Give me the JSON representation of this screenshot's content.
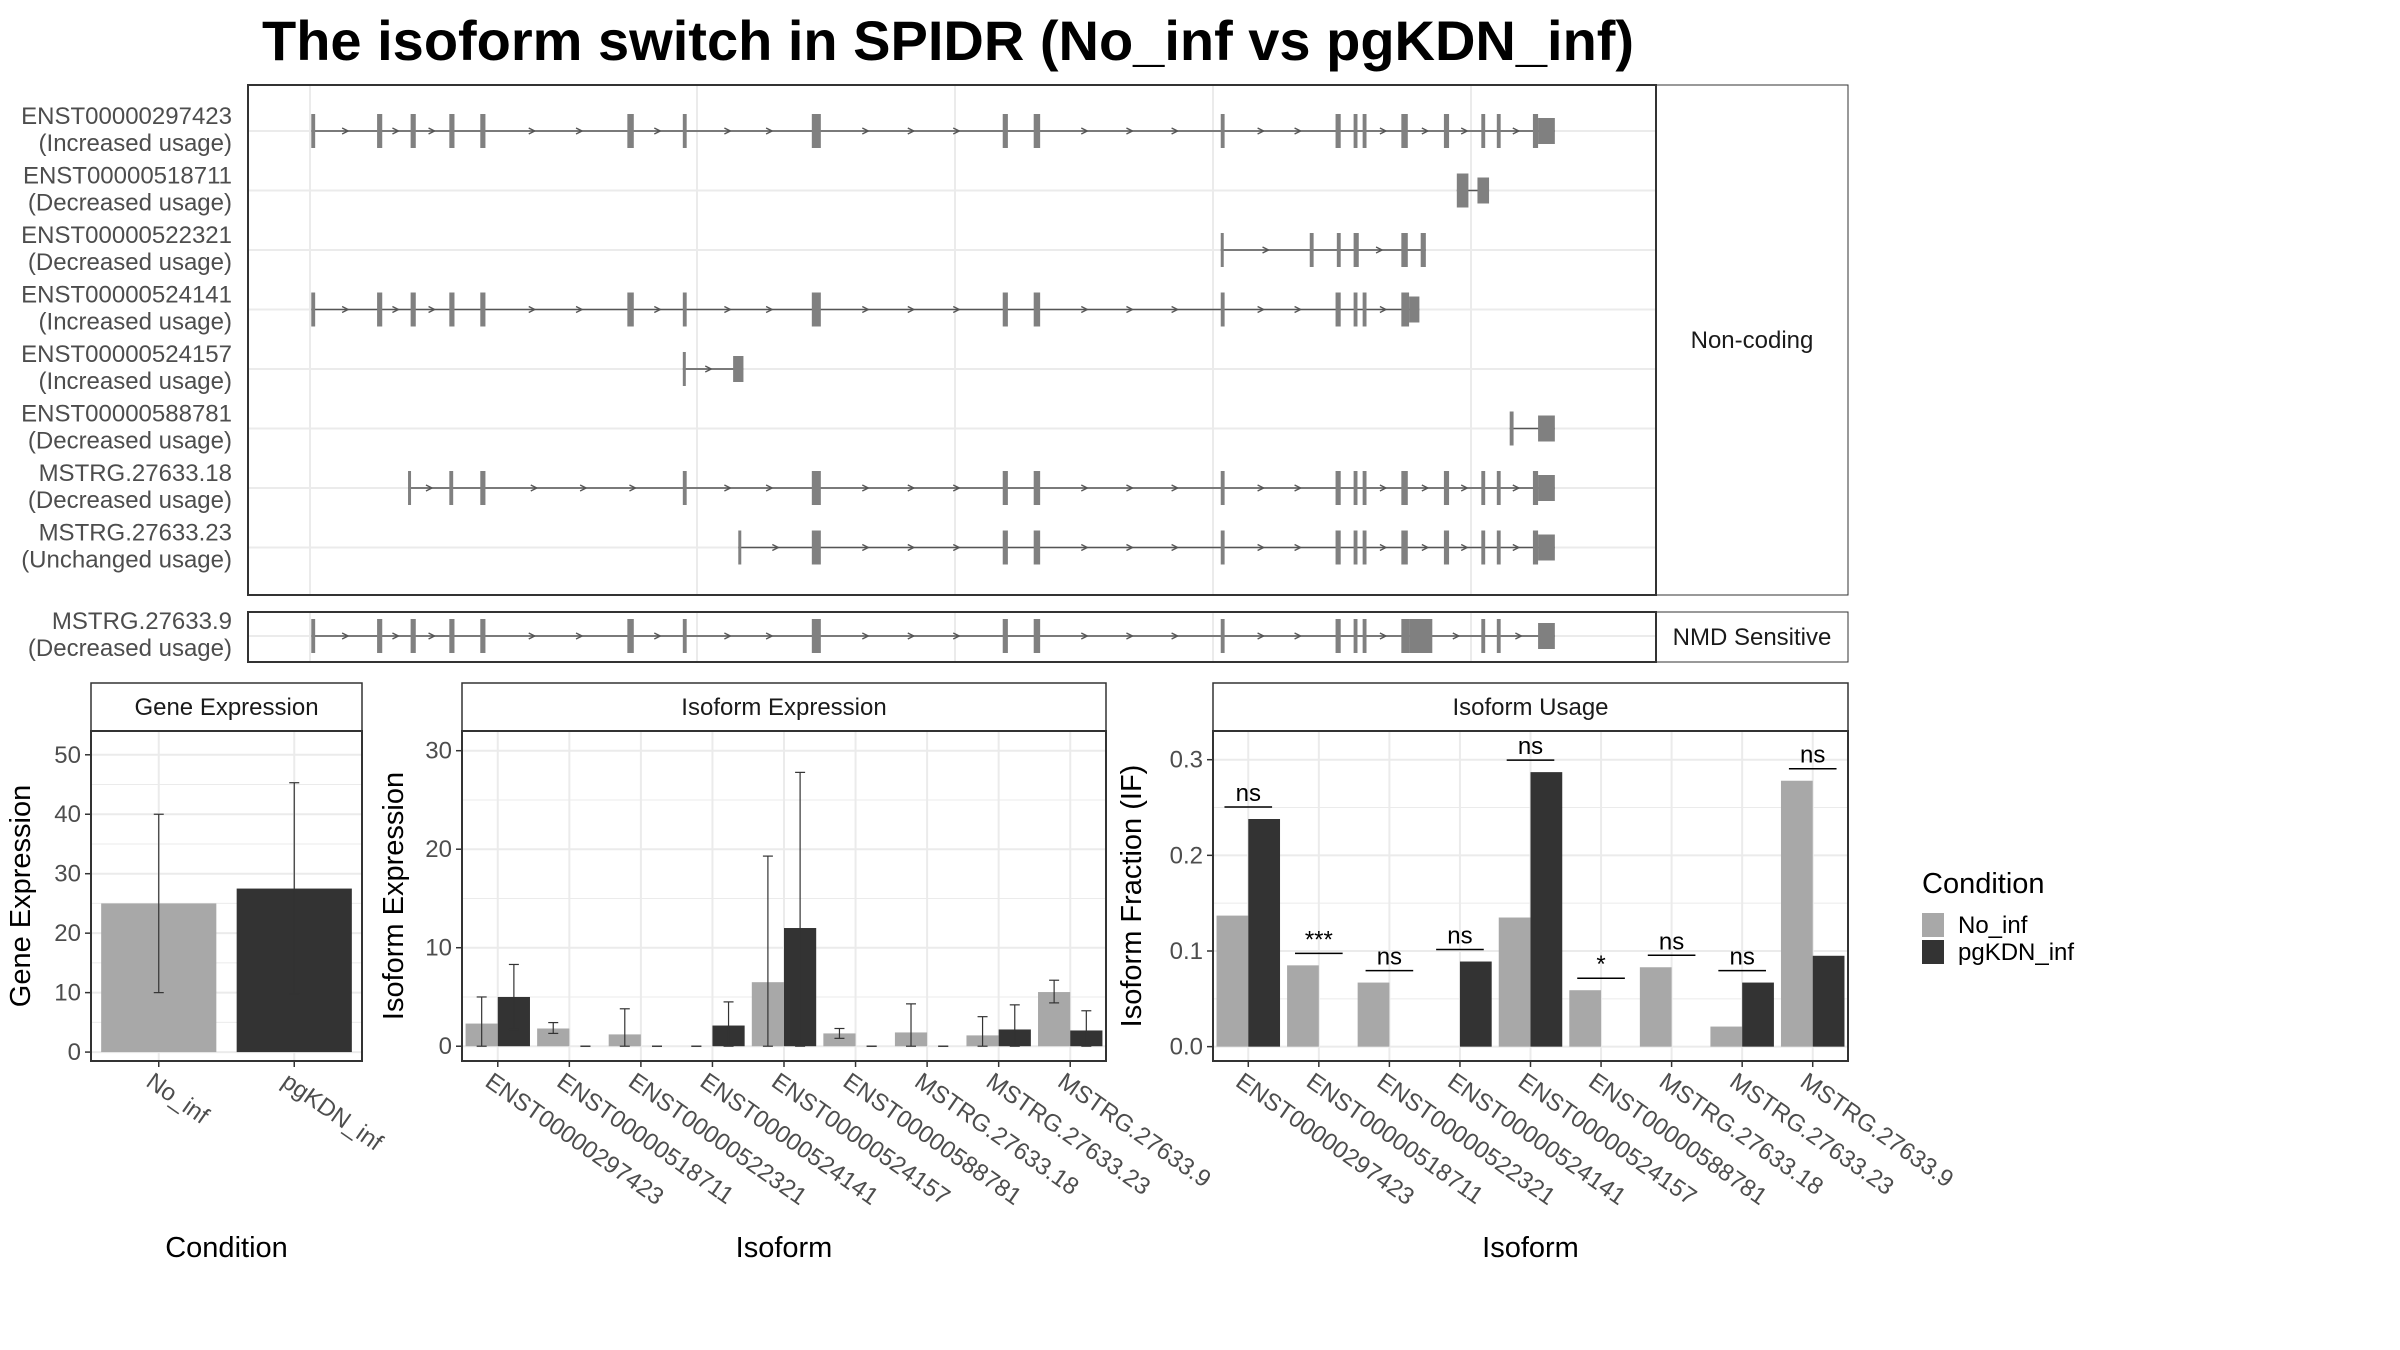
{
  "title": "The isoform switch in SPIDR (No_inf vs pgKDN_inf)",
  "colors": {
    "no_inf": "#a8a8a8",
    "pgkdn_inf": "#333333",
    "exon": "#808080",
    "strip": "#ffffff",
    "grid": "#ebebeb"
  },
  "legend": {
    "title": "Condition",
    "entries": [
      "No_inf",
      "pgKDN_inf"
    ]
  },
  "transcripts": {
    "facets": [
      "Non-coding",
      "NMD Sensitive"
    ],
    "x_range": [
      0,
      100
    ],
    "tracks": [
      {
        "id": "ENST00000297423",
        "usage": "(Increased usage)",
        "facet": 0,
        "exons": [
          [
            0.1,
            0.4
          ],
          [
            5.2,
            5.6
          ],
          [
            7.8,
            8.2
          ],
          [
            10.8,
            11.2
          ],
          [
            13.2,
            13.6
          ],
          [
            24.6,
            25.1
          ],
          [
            28.9,
            29.2
          ],
          [
            38.9,
            39.6
          ],
          [
            53.7,
            54.1
          ],
          [
            56.1,
            56.6
          ],
          [
            70.6,
            70.9
          ],
          [
            79.5,
            79.9
          ],
          [
            80.9,
            81.2
          ],
          [
            81.6,
            81.9
          ],
          [
            84.6,
            85.1
          ],
          [
            87.9,
            88.3
          ],
          [
            90.8,
            91.1
          ],
          [
            92.0,
            92.3
          ],
          [
            94.8,
            95.2
          ],
          [
            95.2,
            96.5
          ]
        ]
      },
      {
        "id": "ENST00000518711",
        "usage": "(Decreased usage)",
        "facet": 0,
        "exons": [
          [
            88.9,
            89.8
          ],
          [
            90.5,
            91.4
          ]
        ]
      },
      {
        "id": "ENST00000522321",
        "usage": "(Decreased usage)",
        "facet": 0,
        "exons": [
          [
            70.6,
            70.8
          ],
          [
            77.5,
            77.8
          ],
          [
            79.6,
            79.9
          ],
          [
            80.9,
            81.3
          ],
          [
            84.6,
            85.1
          ],
          [
            86.1,
            86.5
          ]
        ]
      },
      {
        "id": "ENST00000524141",
        "usage": "(Increased usage)",
        "facet": 0,
        "exons": [
          [
            0.1,
            0.4
          ],
          [
            5.2,
            5.6
          ],
          [
            7.8,
            8.2
          ],
          [
            10.8,
            11.2
          ],
          [
            13.2,
            13.6
          ],
          [
            24.6,
            25.1
          ],
          [
            28.9,
            29.2
          ],
          [
            38.9,
            39.6
          ],
          [
            53.7,
            54.1
          ],
          [
            56.1,
            56.6
          ],
          [
            70.6,
            70.9
          ],
          [
            79.5,
            79.9
          ],
          [
            80.9,
            81.2
          ],
          [
            81.6,
            81.9
          ],
          [
            84.6,
            85.2
          ],
          [
            85.2,
            86.0
          ]
        ]
      },
      {
        "id": "ENST00000524157",
        "usage": "(Increased usage)",
        "facet": 0,
        "exons": [
          [
            28.9,
            29.1
          ],
          [
            32.8,
            33.6
          ]
        ]
      },
      {
        "id": "ENST00000588781",
        "usage": "(Decreased usage)",
        "facet": 0,
        "exons": [
          [
            93.0,
            93.3
          ],
          [
            95.2,
            96.5
          ]
        ]
      },
      {
        "id": "MSTRG.27633.18",
        "usage": "(Decreased usage)",
        "facet": 0,
        "exons": [
          [
            7.6,
            7.8
          ],
          [
            10.8,
            11.1
          ],
          [
            13.2,
            13.6
          ],
          [
            28.9,
            29.2
          ],
          [
            38.9,
            39.6
          ],
          [
            53.7,
            54.1
          ],
          [
            56.1,
            56.6
          ],
          [
            70.6,
            70.9
          ],
          [
            79.5,
            79.9
          ],
          [
            80.9,
            81.2
          ],
          [
            81.6,
            81.9
          ],
          [
            84.6,
            85.1
          ],
          [
            87.9,
            88.3
          ],
          [
            90.8,
            91.1
          ],
          [
            92.0,
            92.3
          ],
          [
            94.8,
            95.2
          ],
          [
            95.2,
            96.5
          ]
        ]
      },
      {
        "id": "MSTRG.27633.23",
        "usage": "(Unchanged usage)",
        "facet": 0,
        "exons": [
          [
            33.2,
            33.4
          ],
          [
            38.9,
            39.6
          ],
          [
            53.7,
            54.1
          ],
          [
            56.1,
            56.6
          ],
          [
            70.6,
            70.9
          ],
          [
            79.5,
            79.9
          ],
          [
            80.9,
            81.2
          ],
          [
            81.6,
            81.9
          ],
          [
            84.6,
            85.1
          ],
          [
            87.9,
            88.3
          ],
          [
            90.8,
            91.1
          ],
          [
            92.0,
            92.3
          ],
          [
            94.8,
            95.2
          ],
          [
            95.2,
            96.5
          ]
        ]
      },
      {
        "id": "MSTRG.27633.9",
        "usage": "(Decreased usage)",
        "facet": 1,
        "exons": [
          [
            0.1,
            0.4
          ],
          [
            5.2,
            5.6
          ],
          [
            7.8,
            8.2
          ],
          [
            10.8,
            11.2
          ],
          [
            13.2,
            13.6
          ],
          [
            24.6,
            25.1
          ],
          [
            28.9,
            29.2
          ],
          [
            38.9,
            39.6
          ],
          [
            53.7,
            54.1
          ],
          [
            56.1,
            56.6
          ],
          [
            70.6,
            70.9
          ],
          [
            79.5,
            79.9
          ],
          [
            80.9,
            81.2
          ],
          [
            81.6,
            81.9
          ],
          [
            84.6,
            85.2
          ],
          [
            85.2,
            87.0
          ],
          [
            90.8,
            91.1
          ],
          [
            92.0,
            92.3
          ],
          [
            95.2,
            96.5
          ]
        ]
      }
    ]
  },
  "chart_data": [
    {
      "type": "bar",
      "title": "Gene Expression",
      "xlabel": "Condition",
      "ylabel": "Gene Expression",
      "categories": [
        "No_inf",
        "pgKDN_inf"
      ],
      "values": [
        25.0,
        27.5
      ],
      "errors": [
        [
          10.0,
          40.0
        ],
        [
          9.8,
          45.3
        ]
      ],
      "ylim": [
        -1.5,
        54
      ],
      "yticks": [
        0,
        10,
        20,
        30,
        40,
        50
      ],
      "grid": true
    },
    {
      "type": "bar",
      "title": "Isoform Expression",
      "xlabel": "Isoform",
      "ylabel": "Isoform Expression",
      "categories": [
        "ENST00000297423",
        "ENST00000518711",
        "ENST00000522321",
        "ENST00000524141",
        "ENST00000524157",
        "ENST00000588781",
        "MSTRG.27633.18",
        "MSTRG.27633.23",
        "MSTRG.27633.9"
      ],
      "series": [
        {
          "name": "No_inf",
          "values": [
            2.3,
            1.8,
            1.2,
            0.0,
            6.5,
            1.3,
            1.4,
            1.1,
            5.5
          ],
          "errors": [
            [
              0.0,
              5.0
            ],
            [
              1.3,
              2.4
            ],
            [
              0.0,
              3.8
            ],
            [
              0.0,
              0.0
            ],
            [
              0.0,
              19.3
            ],
            [
              0.8,
              1.8
            ],
            [
              0.0,
              4.3
            ],
            [
              0.0,
              3.0
            ],
            [
              4.4,
              6.7
            ]
          ]
        },
        {
          "name": "pgKDN_inf",
          "values": [
            5.0,
            0.0,
            0.0,
            2.1,
            12.0,
            0.0,
            0.0,
            1.7,
            1.6
          ],
          "errors": [
            [
              1.7,
              8.3
            ],
            [
              0.0,
              0.0
            ],
            [
              0.0,
              0.0
            ],
            [
              0.0,
              4.5
            ],
            [
              0.0,
              27.8
            ],
            [
              0.0,
              0.0
            ],
            [
              0.0,
              0.0
            ],
            [
              0.0,
              4.2
            ],
            [
              0.0,
              3.6
            ]
          ]
        }
      ],
      "ylim": [
        -1.5,
        32
      ],
      "yticks": [
        0,
        10,
        20,
        30
      ],
      "legend": "right",
      "grid": true
    },
    {
      "type": "bar",
      "title": "Isoform Usage",
      "xlabel": "Isoform",
      "ylabel": "Isoform Fraction (IF)",
      "categories": [
        "ENST00000297423",
        "ENST00000518711",
        "ENST00000522321",
        "ENST00000524141",
        "ENST00000524157",
        "ENST00000588781",
        "MSTRG.27633.18",
        "MSTRG.27633.23",
        "MSTRG.27633.9"
      ],
      "series": [
        {
          "name": "No_inf",
          "values": [
            0.137,
            0.085,
            0.067,
            0.0,
            0.135,
            0.059,
            0.083,
            0.021,
            0.278
          ]
        },
        {
          "name": "pgKDN_inf",
          "values": [
            0.238,
            0.0,
            0.0,
            0.089,
            0.287,
            0.0,
            0.0,
            0.067,
            0.095
          ]
        }
      ],
      "significance": [
        "ns",
        "***",
        "ns",
        "ns",
        "ns",
        "*",
        "ns",
        "ns",
        "ns"
      ],
      "ylim": [
        -0.015,
        0.33
      ],
      "yticks": [
        0.0,
        0.1,
        0.2,
        0.3
      ],
      "yticklabels": [
        "0.0",
        "0.1",
        "0.2",
        "0.3"
      ],
      "legend": "right",
      "grid": true
    }
  ]
}
